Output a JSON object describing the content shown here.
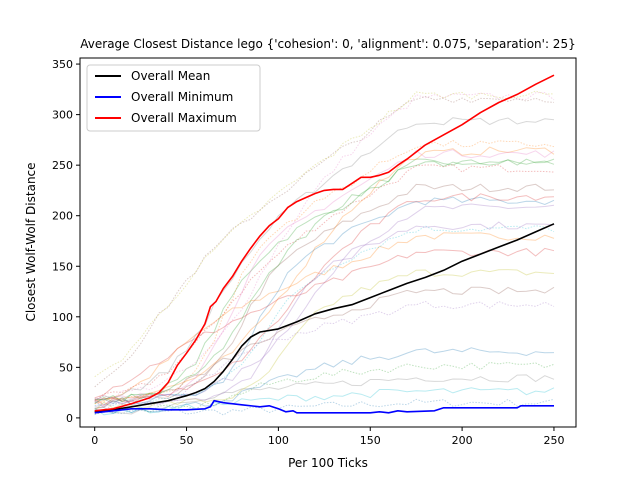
{
  "chart_data": {
    "type": "line",
    "title": "Average Closest Distance lego {'cohesion': 0, 'alignment': 0.075, 'separation': 25}",
    "xlabel": "Per 100 Ticks",
    "ylabel": "Closest Wolf-Wolf Distance",
    "xlim": [
      -8,
      262
    ],
    "ylim": [
      -9,
      356
    ],
    "xticks": [
      0,
      50,
      100,
      150,
      200,
      250
    ],
    "yticks": [
      0,
      50,
      100,
      150,
      200,
      250,
      300,
      350
    ],
    "grid": false,
    "legend_position": "upper-left",
    "series": [
      {
        "name": "Overall Mean",
        "color": "#000000",
        "points": [
          [
            0,
            6
          ],
          [
            10,
            8
          ],
          [
            20,
            11
          ],
          [
            30,
            14
          ],
          [
            40,
            17
          ],
          [
            50,
            22
          ],
          [
            55,
            25
          ],
          [
            60,
            29
          ],
          [
            65,
            36
          ],
          [
            70,
            46
          ],
          [
            75,
            58
          ],
          [
            80,
            71
          ],
          [
            85,
            80
          ],
          [
            90,
            85
          ],
          [
            100,
            88
          ],
          [
            110,
            95
          ],
          [
            120,
            103
          ],
          [
            130,
            108
          ],
          [
            140,
            112
          ],
          [
            150,
            119
          ],
          [
            160,
            126
          ],
          [
            170,
            133
          ],
          [
            180,
            139
          ],
          [
            190,
            146
          ],
          [
            200,
            155
          ],
          [
            210,
            162
          ],
          [
            220,
            169
          ],
          [
            230,
            176
          ],
          [
            240,
            184
          ],
          [
            250,
            192
          ]
        ]
      },
      {
        "name": "Overall Minimum",
        "color": "#0000ff",
        "points": [
          [
            0,
            5
          ],
          [
            10,
            7
          ],
          [
            20,
            9
          ],
          [
            30,
            9
          ],
          [
            40,
            8
          ],
          [
            50,
            8
          ],
          [
            60,
            9
          ],
          [
            63,
            11
          ],
          [
            65,
            17
          ],
          [
            70,
            15
          ],
          [
            80,
            13
          ],
          [
            90,
            11
          ],
          [
            95,
            12
          ],
          [
            100,
            9
          ],
          [
            104,
            6
          ],
          [
            108,
            7
          ],
          [
            110,
            5
          ],
          [
            120,
            5
          ],
          [
            140,
            5
          ],
          [
            150,
            5
          ],
          [
            155,
            6
          ],
          [
            160,
            5
          ],
          [
            165,
            7
          ],
          [
            170,
            6
          ],
          [
            185,
            7
          ],
          [
            190,
            10
          ],
          [
            200,
            10
          ],
          [
            215,
            10
          ],
          [
            230,
            10
          ],
          [
            232,
            12
          ],
          [
            240,
            12
          ],
          [
            250,
            12
          ]
        ]
      },
      {
        "name": "Overall Maximum",
        "color": "#ff0000",
        "points": [
          [
            0,
            7
          ],
          [
            10,
            9
          ],
          [
            20,
            14
          ],
          [
            30,
            20
          ],
          [
            35,
            25
          ],
          [
            40,
            35
          ],
          [
            45,
            52
          ],
          [
            50,
            64
          ],
          [
            55,
            77
          ],
          [
            60,
            93
          ],
          [
            63,
            110
          ],
          [
            66,
            115
          ],
          [
            70,
            128
          ],
          [
            75,
            140
          ],
          [
            80,
            155
          ],
          [
            85,
            168
          ],
          [
            90,
            180
          ],
          [
            95,
            190
          ],
          [
            100,
            197
          ],
          [
            105,
            208
          ],
          [
            110,
            214
          ],
          [
            120,
            222
          ],
          [
            125,
            225
          ],
          [
            130,
            226
          ],
          [
            135,
            226
          ],
          [
            140,
            232
          ],
          [
            145,
            238
          ],
          [
            150,
            238
          ],
          [
            155,
            240
          ],
          [
            160,
            243
          ],
          [
            165,
            250
          ],
          [
            170,
            256
          ],
          [
            180,
            270
          ],
          [
            190,
            280
          ],
          [
            200,
            290
          ],
          [
            210,
            302
          ],
          [
            220,
            312
          ],
          [
            230,
            320
          ],
          [
            240,
            330
          ],
          [
            250,
            339
          ]
        ]
      }
    ]
  }
}
